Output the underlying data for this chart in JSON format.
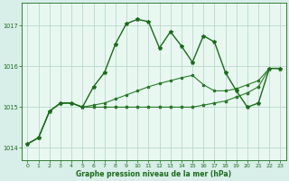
{
  "background_color": "#d8eee8",
  "plot_bg_color": "#e8f8f0",
  "grid_color": "#b8d8cc",
  "line_color1": "#1a6b1a",
  "line_color2": "#2a7a2a",
  "line_color3": "#2a7a2a",
  "xlabel": "Graphe pression niveau de la mer (hPa)",
  "ylim": [
    1013.7,
    1017.55
  ],
  "xlim": [
    -0.5,
    23.5
  ],
  "yticks": [
    1014,
    1015,
    1016,
    1017
  ],
  "xticks": [
    0,
    1,
    2,
    3,
    4,
    5,
    6,
    7,
    8,
    9,
    10,
    11,
    12,
    13,
    14,
    15,
    16,
    17,
    18,
    19,
    20,
    21,
    22,
    23
  ],
  "s1_x": [
    0,
    1,
    2,
    3,
    4,
    5,
    6,
    7,
    8,
    9,
    10,
    11,
    12,
    13,
    14,
    15,
    16,
    17,
    18,
    19,
    20,
    21,
    22,
    23
  ],
  "s1_y": [
    1014.1,
    1014.25,
    1014.9,
    1015.1,
    1015.1,
    1015.0,
    1015.5,
    1015.85,
    1016.55,
    1017.05,
    1017.15,
    1017.1,
    1016.45,
    1016.85,
    1016.5,
    1016.1,
    1016.75,
    1016.6,
    1015.85,
    1015.4,
    1015.0,
    1015.1,
    1015.95,
    1015.95
  ],
  "s2_x": [
    0,
    1,
    2,
    3,
    4,
    5,
    6,
    7,
    8,
    9,
    10,
    11,
    12,
    13,
    14,
    15,
    16,
    17,
    18,
    19,
    20,
    21,
    22,
    23
  ],
  "s2_y": [
    1014.1,
    1014.25,
    1014.9,
    1015.1,
    1015.1,
    1015.0,
    1015.0,
    1015.0,
    1015.0,
    1015.0,
    1015.0,
    1015.0,
    1015.0,
    1015.0,
    1015.0,
    1015.0,
    1015.05,
    1015.1,
    1015.15,
    1015.25,
    1015.35,
    1015.5,
    1015.95,
    1015.95
  ],
  "s3_x": [
    0,
    1,
    2,
    3,
    4,
    5,
    6,
    7,
    8,
    9,
    10,
    11,
    12,
    13,
    14,
    15,
    16,
    17,
    18,
    19,
    20,
    21,
    22,
    23
  ],
  "s3_y": [
    1014.1,
    1014.25,
    1014.9,
    1015.1,
    1015.1,
    1015.0,
    1015.05,
    1015.1,
    1015.2,
    1015.3,
    1015.4,
    1015.5,
    1015.58,
    1015.65,
    1015.72,
    1015.78,
    1015.55,
    1015.4,
    1015.4,
    1015.45,
    1015.55,
    1015.65,
    1015.95,
    1015.95
  ]
}
